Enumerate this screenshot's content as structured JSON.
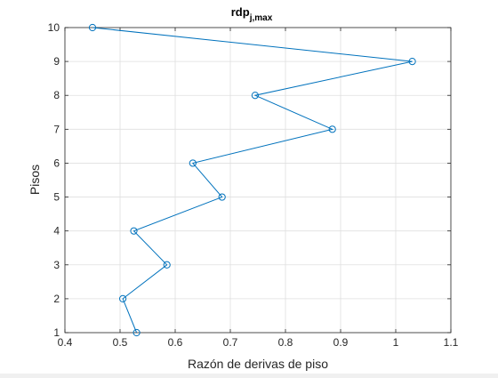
{
  "chart_data": {
    "type": "line",
    "title_main": "rdp",
    "title_sub": "j,max",
    "xlabel": "Razón de derivas de piso",
    "ylabel": "Pisos",
    "xlim": [
      0.4,
      1.1
    ],
    "ylim": [
      1,
      10
    ],
    "xticks": [
      0.4,
      0.5,
      0.6,
      0.7,
      0.8,
      0.9,
      1,
      1.1
    ],
    "xtick_labels": [
      "0.4",
      "0.5",
      "0.6",
      "0.7",
      "0.8",
      "0.9",
      "1",
      "1.1"
    ],
    "yticks": [
      1,
      2,
      3,
      4,
      5,
      6,
      7,
      8,
      9,
      10
    ],
    "ytick_labels": [
      "1",
      "2",
      "3",
      "4",
      "5",
      "6",
      "7",
      "8",
      "9",
      "10"
    ],
    "grid": true,
    "marker": "circle",
    "series": [
      {
        "color": "#0072bd",
        "points": [
          {
            "x": 0.53,
            "y": 1
          },
          {
            "x": 0.505,
            "y": 2
          },
          {
            "x": 0.585,
            "y": 3
          },
          {
            "x": 0.525,
            "y": 4
          },
          {
            "x": 0.685,
            "y": 5
          },
          {
            "x": 0.632,
            "y": 6
          },
          {
            "x": 0.885,
            "y": 7
          },
          {
            "x": 0.745,
            "y": 8
          },
          {
            "x": 1.03,
            "y": 9
          },
          {
            "x": 0.45,
            "y": 10
          }
        ]
      }
    ]
  }
}
